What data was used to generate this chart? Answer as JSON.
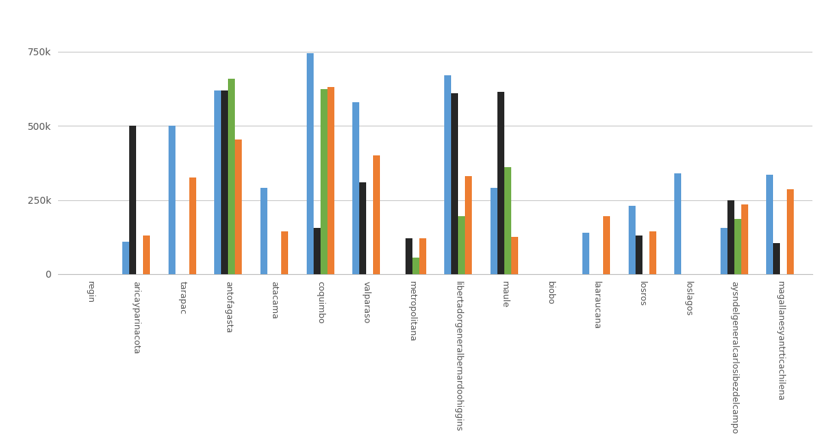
{
  "regions": [
    "regin",
    "aricayparinacota",
    "tarapac",
    "antofagasta",
    "atacama",
    "coquimbo",
    "valparaso",
    "metropolitana",
    "libertadorgeneralbernardoohiggins",
    "maule",
    "biobo",
    "laaraucana",
    "losros",
    "loslagos",
    "aysndelgeneralcarlosibezdelcampo",
    "magallanesyantrticachilena"
  ],
  "series": {
    "blue": [
      0,
      110000,
      500000,
      620000,
      290000,
      745000,
      580000,
      0,
      670000,
      290000,
      0,
      140000,
      230000,
      340000,
      155000,
      335000
    ],
    "black": [
      0,
      500000,
      0,
      620000,
      0,
      155000,
      310000,
      120000,
      610000,
      615000,
      0,
      0,
      130000,
      0,
      250000,
      105000
    ],
    "green": [
      0,
      0,
      0,
      660000,
      0,
      625000,
      0,
      55000,
      195000,
      360000,
      0,
      0,
      0,
      0,
      185000,
      0
    ],
    "orange": [
      0,
      130000,
      325000,
      455000,
      145000,
      630000,
      400000,
      120000,
      330000,
      125000,
      0,
      195000,
      145000,
      0,
      235000,
      285000
    ]
  },
  "colors": {
    "blue": "#5B9BD5",
    "black": "#262626",
    "green": "#70AD47",
    "orange": "#ED7D31"
  },
  "yticks": [
    0,
    250000,
    500000,
    750000
  ],
  "ytick_labels": [
    "0",
    "250k",
    "500k",
    "750k"
  ],
  "background_color": "#FFFFFF",
  "grid_color": "#C8C8C8",
  "bar_width": 0.15,
  "figsize": [
    12.0,
    6.4
  ],
  "dpi": 100
}
